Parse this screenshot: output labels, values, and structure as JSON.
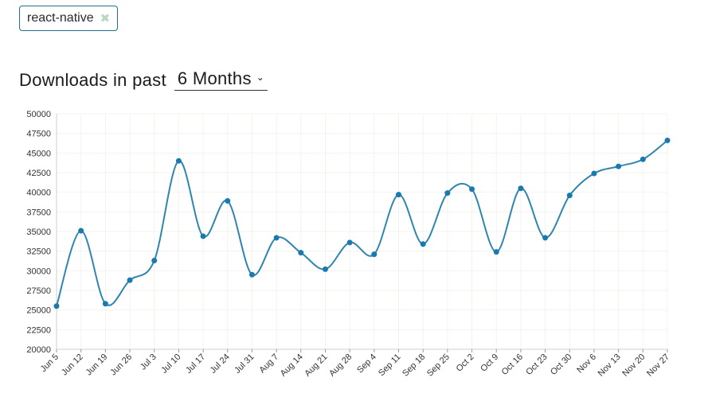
{
  "tags": [
    {
      "label": "react-native",
      "remove_glyph": "✖"
    }
  ],
  "heading": {
    "prefix": "Downloads in past",
    "period": "6 Months",
    "chevron_icon": "chevron-down-icon"
  },
  "colors": {
    "line": "#2e86b0",
    "point": "#1a7ab0",
    "tag_border": "#1f6f8b",
    "grid": "#f3f3ee"
  },
  "chart_data": {
    "type": "line",
    "categories": [
      "Jun 5",
      "Jun 12",
      "Jun 19",
      "Jun 26",
      "Jul 3",
      "Jul 10",
      "Jul 17",
      "Jul 24",
      "Jul 31",
      "Aug 7",
      "Aug 14",
      "Aug 21",
      "Aug 28",
      "Sep 4",
      "Sep 11",
      "Sep 18",
      "Sep 25",
      "Oct 2",
      "Oct 9",
      "Oct 16",
      "Oct 23",
      "Oct 30",
      "Nov 6",
      "Nov 13",
      "Nov 20",
      "Nov 27"
    ],
    "values": [
      25500,
      35100,
      25800,
      28800,
      31300,
      44000,
      34400,
      38900,
      29500,
      34200,
      32300,
      30200,
      33600,
      32100,
      39700,
      33400,
      39900,
      40400,
      32400,
      40500,
      34200,
      39600,
      42400,
      43300,
      44200,
      46600
    ],
    "ylim": [
      20000,
      50000
    ],
    "yticks": [
      20000,
      22500,
      25000,
      27500,
      30000,
      32500,
      35000,
      37500,
      40000,
      42500,
      45000,
      47500,
      50000
    ],
    "grid": true,
    "legend": "none"
  }
}
